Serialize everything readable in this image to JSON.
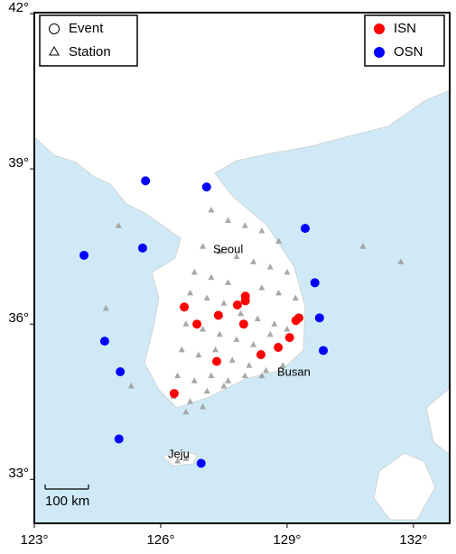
{
  "map": {
    "xlim": [
      123,
      132.86
    ],
    "ylim": [
      32.15,
      42.02
    ],
    "xticks": [
      {
        "value": 123,
        "label": "123°"
      },
      {
        "value": 126,
        "label": "126°"
      },
      {
        "value": 129,
        "label": "129°"
      },
      {
        "value": 132,
        "label": "132°"
      }
    ],
    "yticks": [
      {
        "value": 33,
        "label": "33°"
      },
      {
        "value": 36,
        "label": "36°"
      },
      {
        "value": 39,
        "label": "39°"
      },
      {
        "value": 42,
        "label": "42°"
      }
    ],
    "legend_symbols": [
      "Event",
      "Station"
    ],
    "places": [
      "Seoul",
      "Busan",
      "Jeju"
    ],
    "scale_bar": "100 km",
    "event_groups": [
      {
        "name": "ISN",
        "color": "#ff0000",
        "lon": [
          126.56,
          126.86,
          127.37,
          127.82,
          128.01,
          128.01,
          127.97,
          127.33,
          128.38,
          128.79,
          129.06,
          129.21,
          129.28,
          126.32
        ],
        "lat": [
          36.33,
          36.0,
          36.17,
          36.37,
          36.54,
          36.45,
          36.0,
          35.28,
          35.41,
          35.55,
          35.74,
          36.07,
          36.12,
          34.66
        ]
      },
      {
        "name": "OSN",
        "color": "#0000ff",
        "lon": [
          125.64,
          127.09,
          124.18,
          125.57,
          129.43,
          129.66,
          129.77,
          124.67,
          129.86,
          125.04,
          125.01,
          126.96
        ],
        "lat": [
          38.77,
          38.65,
          37.33,
          37.47,
          37.85,
          36.8,
          36.12,
          35.67,
          35.49,
          35.08,
          33.78,
          33.31
        ]
      }
    ],
    "stations": {
      "color": "#999999",
      "lon": [
        127.2,
        127.6,
        128.0,
        128.4,
        128.8,
        127.0,
        127.4,
        127.8,
        128.2,
        128.6,
        129.0,
        126.8,
        127.2,
        127.6,
        128.4,
        128.8,
        129.2,
        126.7,
        127.1,
        127.5,
        127.9,
        128.3,
        128.7,
        126.6,
        127.0,
        127.4,
        127.8,
        128.2,
        128.6,
        129.0,
        126.5,
        126.9,
        127.3,
        127.7,
        128.1,
        128.5,
        128.9,
        126.4,
        126.8,
        127.2,
        127.6,
        128.0,
        128.4,
        126.3,
        126.7,
        127.1,
        127.5,
        126.6,
        127.0,
        125.0,
        124.7,
        125.3,
        130.8,
        131.7,
        126.4,
        126.6
      ],
      "lat": [
        38.2,
        38.0,
        37.9,
        37.8,
        37.6,
        37.5,
        37.4,
        37.3,
        37.2,
        37.1,
        37.0,
        37.0,
        36.9,
        36.8,
        36.7,
        36.6,
        36.5,
        36.6,
        36.5,
        36.4,
        36.2,
        36.1,
        36.0,
        36.0,
        35.9,
        35.8,
        35.7,
        35.6,
        35.8,
        35.9,
        35.5,
        35.4,
        35.5,
        35.3,
        35.2,
        35.1,
        35.2,
        35.0,
        34.9,
        35.0,
        34.9,
        35.0,
        35.0,
        34.6,
        34.5,
        34.7,
        34.8,
        34.3,
        34.4,
        37.9,
        36.3,
        34.8,
        37.5,
        37.2,
        33.35,
        33.4
      ]
    }
  }
}
